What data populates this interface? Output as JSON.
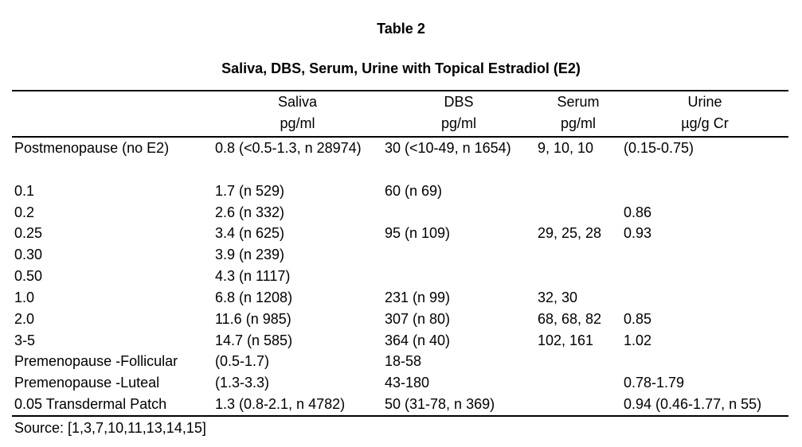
{
  "page": {
    "heading": "Table 2",
    "subtitle": "Saliva, DBS, Serum, Urine with Topical Estradiol (E2)",
    "source_note": "Source: [1,3,7,10,11,13,14,15]"
  },
  "colors": {
    "text": "#000000",
    "background": "#ffffff",
    "rule": "#000000"
  },
  "table": {
    "columns": [
      {
        "line1": "",
        "line2": ""
      },
      {
        "line1": "Saliva",
        "line2": "pg/ml"
      },
      {
        "line1": "DBS",
        "line2": "pg/ml"
      },
      {
        "line1": "Serum",
        "line2": "pg/ml"
      },
      {
        "line1": "Urine",
        "line2": "µg/g Cr"
      }
    ],
    "rows": [
      {
        "cells": [
          "Postmenopause (no E2)",
          "0.8 (<0.5-1.3, n 28974)",
          "30 (<10-49, n 1654)",
          "9, 10, 10",
          "(0.15-0.75)"
        ]
      },
      {
        "cells": [
          "",
          "",
          "",
          "",
          ""
        ]
      },
      {
        "cells": [
          "0.1",
          "1.7 (n 529)",
          "60 (n 69)",
          "",
          ""
        ]
      },
      {
        "cells": [
          "0.2",
          "2.6 (n 332)",
          "",
          "",
          "0.86"
        ]
      },
      {
        "cells": [
          "0.25",
          "3.4 (n 625)",
          "95 (n 109)",
          "29, 25, 28",
          "0.93"
        ]
      },
      {
        "cells": [
          "0.30",
          "3.9 (n 239)",
          "",
          "",
          ""
        ]
      },
      {
        "cells": [
          "0.50",
          "4.3 (n 1117)",
          "",
          "",
          ""
        ]
      },
      {
        "cells": [
          "1.0",
          "6.8 (n 1208)",
          "231 (n 99)",
          "32, 30",
          ""
        ]
      },
      {
        "cells": [
          "2.0",
          "11.6 (n 985)",
          "307 (n 80)",
          "68, 68, 82",
          "0.85"
        ]
      },
      {
        "cells": [
          "3-5",
          "14.7 (n 585)",
          "364 (n 40)",
          "102, 161",
          "1.02"
        ]
      },
      {
        "cells": [
          "Premenopause -Follicular",
          "(0.5-1.7)",
          "18-58",
          "",
          ""
        ]
      },
      {
        "cells": [
          "Premenopause -Luteal",
          "(1.3-3.3)",
          "43-180",
          "",
          "0.78-1.79"
        ]
      },
      {
        "cells": [
          "0.05 Transdermal Patch",
          "1.3 (0.8-2.1, n 4782)",
          "50 (31-78, n 369)",
          "",
          "0.94 (0.46-1.77, n 55)"
        ]
      }
    ]
  }
}
